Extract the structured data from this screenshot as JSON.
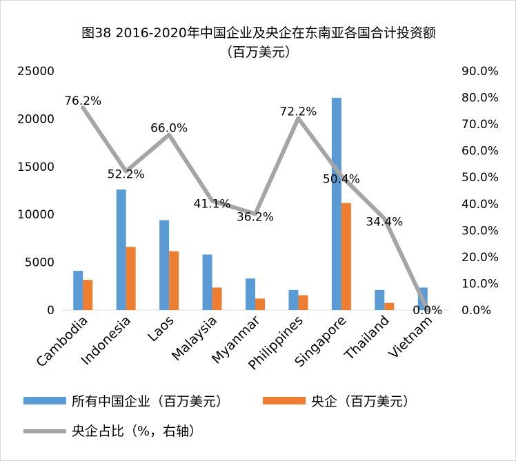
{
  "colors": {
    "all_enterprises": "#5b9bd5",
    "soe": "#ed7d31",
    "ratio": "#a5a5a5",
    "axis": "#d9d9d9"
  },
  "chart_data": {
    "type": "bar",
    "title_line1": "图38 2016-2020年中国企业及央企在东南亚各国合计投资额",
    "title_line2": "（百万美元）",
    "categories": [
      "Cambodia",
      "Indonesia",
      "Laos",
      "Malaysia",
      "Myanmar",
      "Philippines",
      "Singapore",
      "Thailand",
      "Vietnam"
    ],
    "series": [
      {
        "name": "所有中国企业（百万美元）",
        "type": "bar",
        "axis": "left",
        "values": [
          4100,
          12600,
          9400,
          5800,
          3300,
          2100,
          22200,
          2100,
          2350
        ]
      },
      {
        "name": "央企（百万美元）",
        "type": "bar",
        "axis": "left",
        "values": [
          3150,
          6600,
          6150,
          2350,
          1200,
          1550,
          11200,
          750,
          0
        ]
      },
      {
        "name": "央企占比（%，右轴）",
        "type": "line",
        "axis": "right",
        "values": [
          76.2,
          52.2,
          66.0,
          41.1,
          36.2,
          72.2,
          50.4,
          34.4,
          0.0
        ]
      }
    ],
    "data_labels": [
      "76.2%",
      "52.2%",
      "66.0%",
      "41.1%",
      "36.2%",
      "72.2%",
      "50.4%",
      "34.4%",
      "0.0%"
    ],
    "left_axis": {
      "min": 0,
      "max": 25000,
      "ticks": [
        "0",
        "5000",
        "10000",
        "15000",
        "20000",
        "25000"
      ]
    },
    "right_axis": {
      "min": 0,
      "max": 90,
      "ticks": [
        "0.0%",
        "10.0%",
        "20.0%",
        "30.0%",
        "40.0%",
        "50.0%",
        "60.0%",
        "70.0%",
        "80.0%",
        "90.0%"
      ]
    },
    "legend": {
      "placement": "bottom"
    },
    "grid": false
  }
}
